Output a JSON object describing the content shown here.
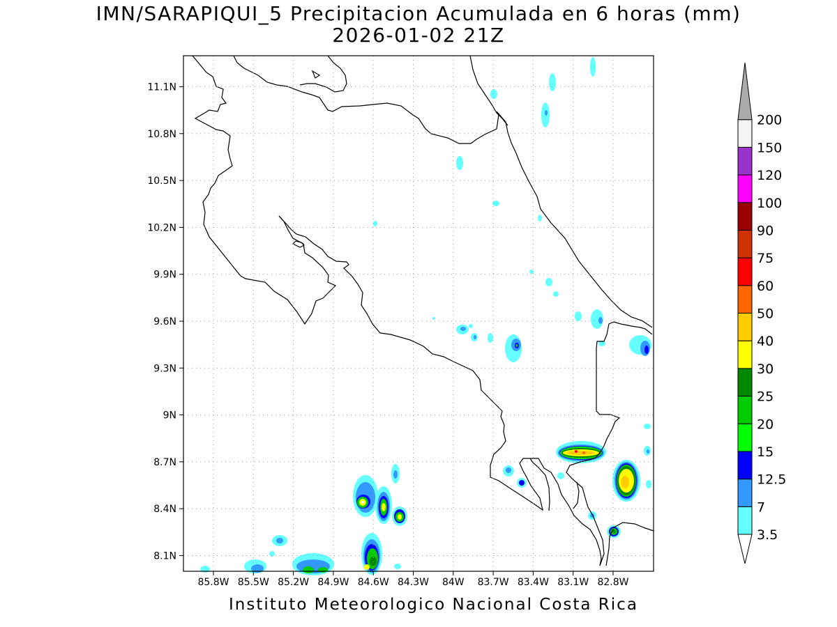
{
  "title_line1": "IMN/SARAPIQUI_5 Precipitacion Acumulada en 6 horas (mm)",
  "title_line2": "2026-01-02 21Z",
  "footer": "Instituto Meteorologico Nacional Costa Rica",
  "map": {
    "lat_ticks": [
      "11.1N",
      "10.8N",
      "10.5N",
      "10.2N",
      "9.9N",
      "9.6N",
      "9.3N",
      "9N",
      "8.7N",
      "8.4N",
      "8.1N"
    ],
    "lon_ticks": [
      "85.8W",
      "85.5W",
      "85.2W",
      "84.9W",
      "84.6W",
      "84.3W",
      "84W",
      "83.7W",
      "83.4W",
      "83.1W",
      "82.8W"
    ],
    "grid": "dotted"
  },
  "colorbar": {
    "levels": [
      "3.5",
      "7",
      "12.5",
      "15",
      "20",
      "25",
      "30",
      "40",
      "50",
      "60",
      "75",
      "90",
      "100",
      "120",
      "150",
      "200"
    ],
    "colors": [
      "#66ffff",
      "#3399ff",
      "#0000ff",
      "#00ff00",
      "#00cc00",
      "#008800",
      "#ffff00",
      "#ffcc00",
      "#ff6600",
      "#ff0000",
      "#cc3300",
      "#990000",
      "#ff00ff",
      "#9933cc",
      "#f5f5f5",
      "#aaaaaa"
    ]
  }
}
